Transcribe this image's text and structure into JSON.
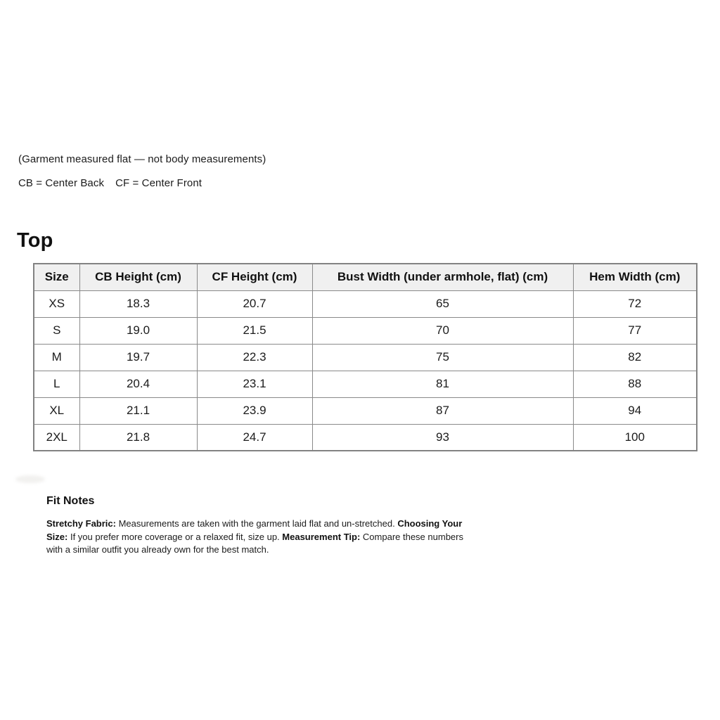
{
  "document": {
    "intro": {
      "line1": "(Garment measured flat — not body measurements)",
      "cb_definition": "CB = Center Back",
      "cf_definition": "CF = Center Front"
    },
    "section_title": "Top",
    "table": {
      "columns": [
        "Size",
        "CB Height (cm)",
        "CF Height (cm)",
        "Bust Width (under armhole, flat) (cm)",
        "Hem Width (cm)"
      ],
      "rows": [
        [
          "XS",
          "18.3",
          "20.7",
          "65",
          "72"
        ],
        [
          "S",
          "19.0",
          "21.5",
          "70",
          "77"
        ],
        [
          "M",
          "19.7",
          "22.3",
          "75",
          "82"
        ],
        [
          "L",
          "20.4",
          "23.1",
          "81",
          "88"
        ],
        [
          "XL",
          "21.1",
          "23.9",
          "87",
          "94"
        ],
        [
          "2XL",
          "21.8",
          "24.7",
          "93",
          "100"
        ]
      ]
    },
    "fit_notes": {
      "title": "Fit Notes",
      "runs": [
        {
          "bold": true,
          "text": "Stretchy Fabric:"
        },
        {
          "bold": false,
          "text": " Measurements are taken with the garment laid flat and un-stretched. "
        },
        {
          "bold": true,
          "text": "Choosing Your Size:"
        },
        {
          "bold": false,
          "text": " If you prefer more coverage or a relaxed fit, size up. "
        },
        {
          "bold": true,
          "text": "Measurement Tip:"
        },
        {
          "bold": false,
          "text": " Compare these numbers with a similar outfit you already own for the best match."
        }
      ]
    },
    "colors": {
      "background": "#ffffff",
      "text": "#1b1b1b",
      "table_header_bg": "#f0f0f0",
      "table_border": "#8a8a8a"
    }
  }
}
